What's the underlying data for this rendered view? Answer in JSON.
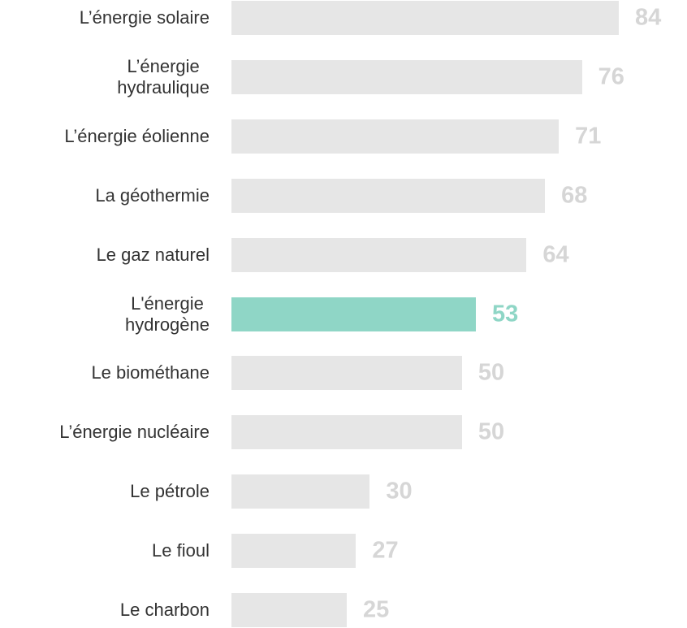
{
  "chart_data": {
    "type": "barh",
    "categories": [
      "L’énergie solaire",
      "L’énergie\nhydraulique",
      "L’énergie éolienne",
      "La géothermie",
      "Le gaz naturel",
      "L'énergie\nhydrogène",
      "Le biométhane",
      "L’énergie nucléaire",
      "Le pétrole",
      "Le fioul",
      "Le charbon"
    ],
    "values": [
      84,
      76,
      71,
      68,
      64,
      53,
      50,
      50,
      30,
      27,
      25
    ],
    "colors": [
      "#e6e6e6",
      "#e6e6e6",
      "#e6e6e6",
      "#e6e6e6",
      "#e6e6e6",
      "#8fd6c6",
      "#e6e6e6",
      "#e6e6e6",
      "#e6e6e6",
      "#e6e6e6",
      "#e6e6e6"
    ],
    "label_colors": [
      "#d6d6d6",
      "#d6d6d6",
      "#d6d6d6",
      "#d6d6d6",
      "#d6d6d6",
      "#8fd6c6",
      "#d6d6d6",
      "#d6d6d6",
      "#d6d6d6",
      "#d6d6d6",
      "#d6d6d6"
    ]
  }
}
